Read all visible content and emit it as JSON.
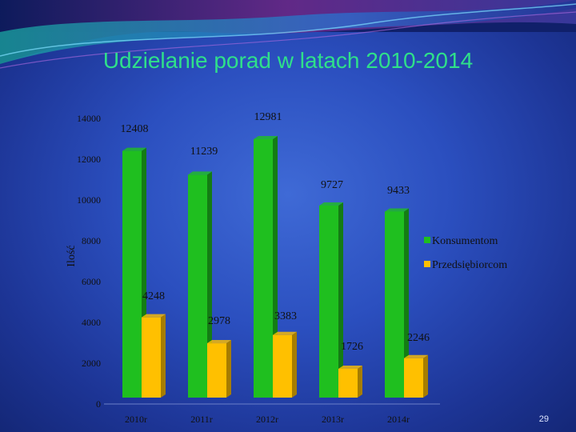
{
  "slide": {
    "title": "Udzielanie porad w latach 2010-2014",
    "number": "29"
  },
  "colors": {
    "background": "#2b4fbf",
    "title": "#2fe08a",
    "series_green": "#1fbf1f",
    "series_yellow": "#ffc000"
  },
  "chart_data": {
    "type": "bar",
    "categories": [
      "2010r",
      "2011r",
      "2012r",
      "2013r",
      "2014r"
    ],
    "series": [
      {
        "name": "Konsumentom",
        "values": [
          12408,
          11239,
          12981,
          9727,
          9433
        ],
        "color": "#1fbf1f"
      },
      {
        "name": "Przedsiębiorcom",
        "values": [
          4248,
          2978,
          3383,
          1726,
          2246
        ],
        "color": "#ffc000"
      }
    ],
    "ylabel": "Ilość",
    "ylim": [
      0,
      14000
    ],
    "yticks": [
      0,
      2000,
      4000,
      6000,
      8000,
      10000,
      12000,
      14000
    ],
    "grid": false,
    "legend": "right"
  }
}
